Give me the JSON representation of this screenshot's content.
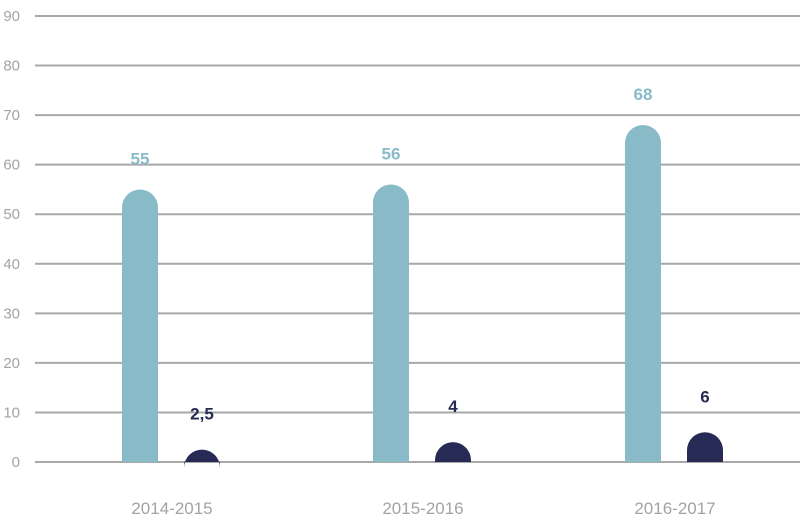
{
  "chart_data": {
    "type": "bar",
    "categories": [
      "2014-2015",
      "2015-2016",
      "2016-2017"
    ],
    "series": [
      {
        "values": [
          55,
          56,
          68
        ],
        "labels": [
          "55",
          "56",
          "68"
        ],
        "color": "#88bac7"
      },
      {
        "values": [
          2.5,
          4,
          6
        ],
        "labels": [
          "2,5",
          "4",
          "6"
        ],
        "color": "#262a54"
      }
    ],
    "y_ticks": [
      "0",
      "10",
      "20",
      "30",
      "40",
      "50",
      "60",
      "70",
      "80",
      "90"
    ],
    "ylim": [
      0,
      90
    ],
    "grid": true
  }
}
